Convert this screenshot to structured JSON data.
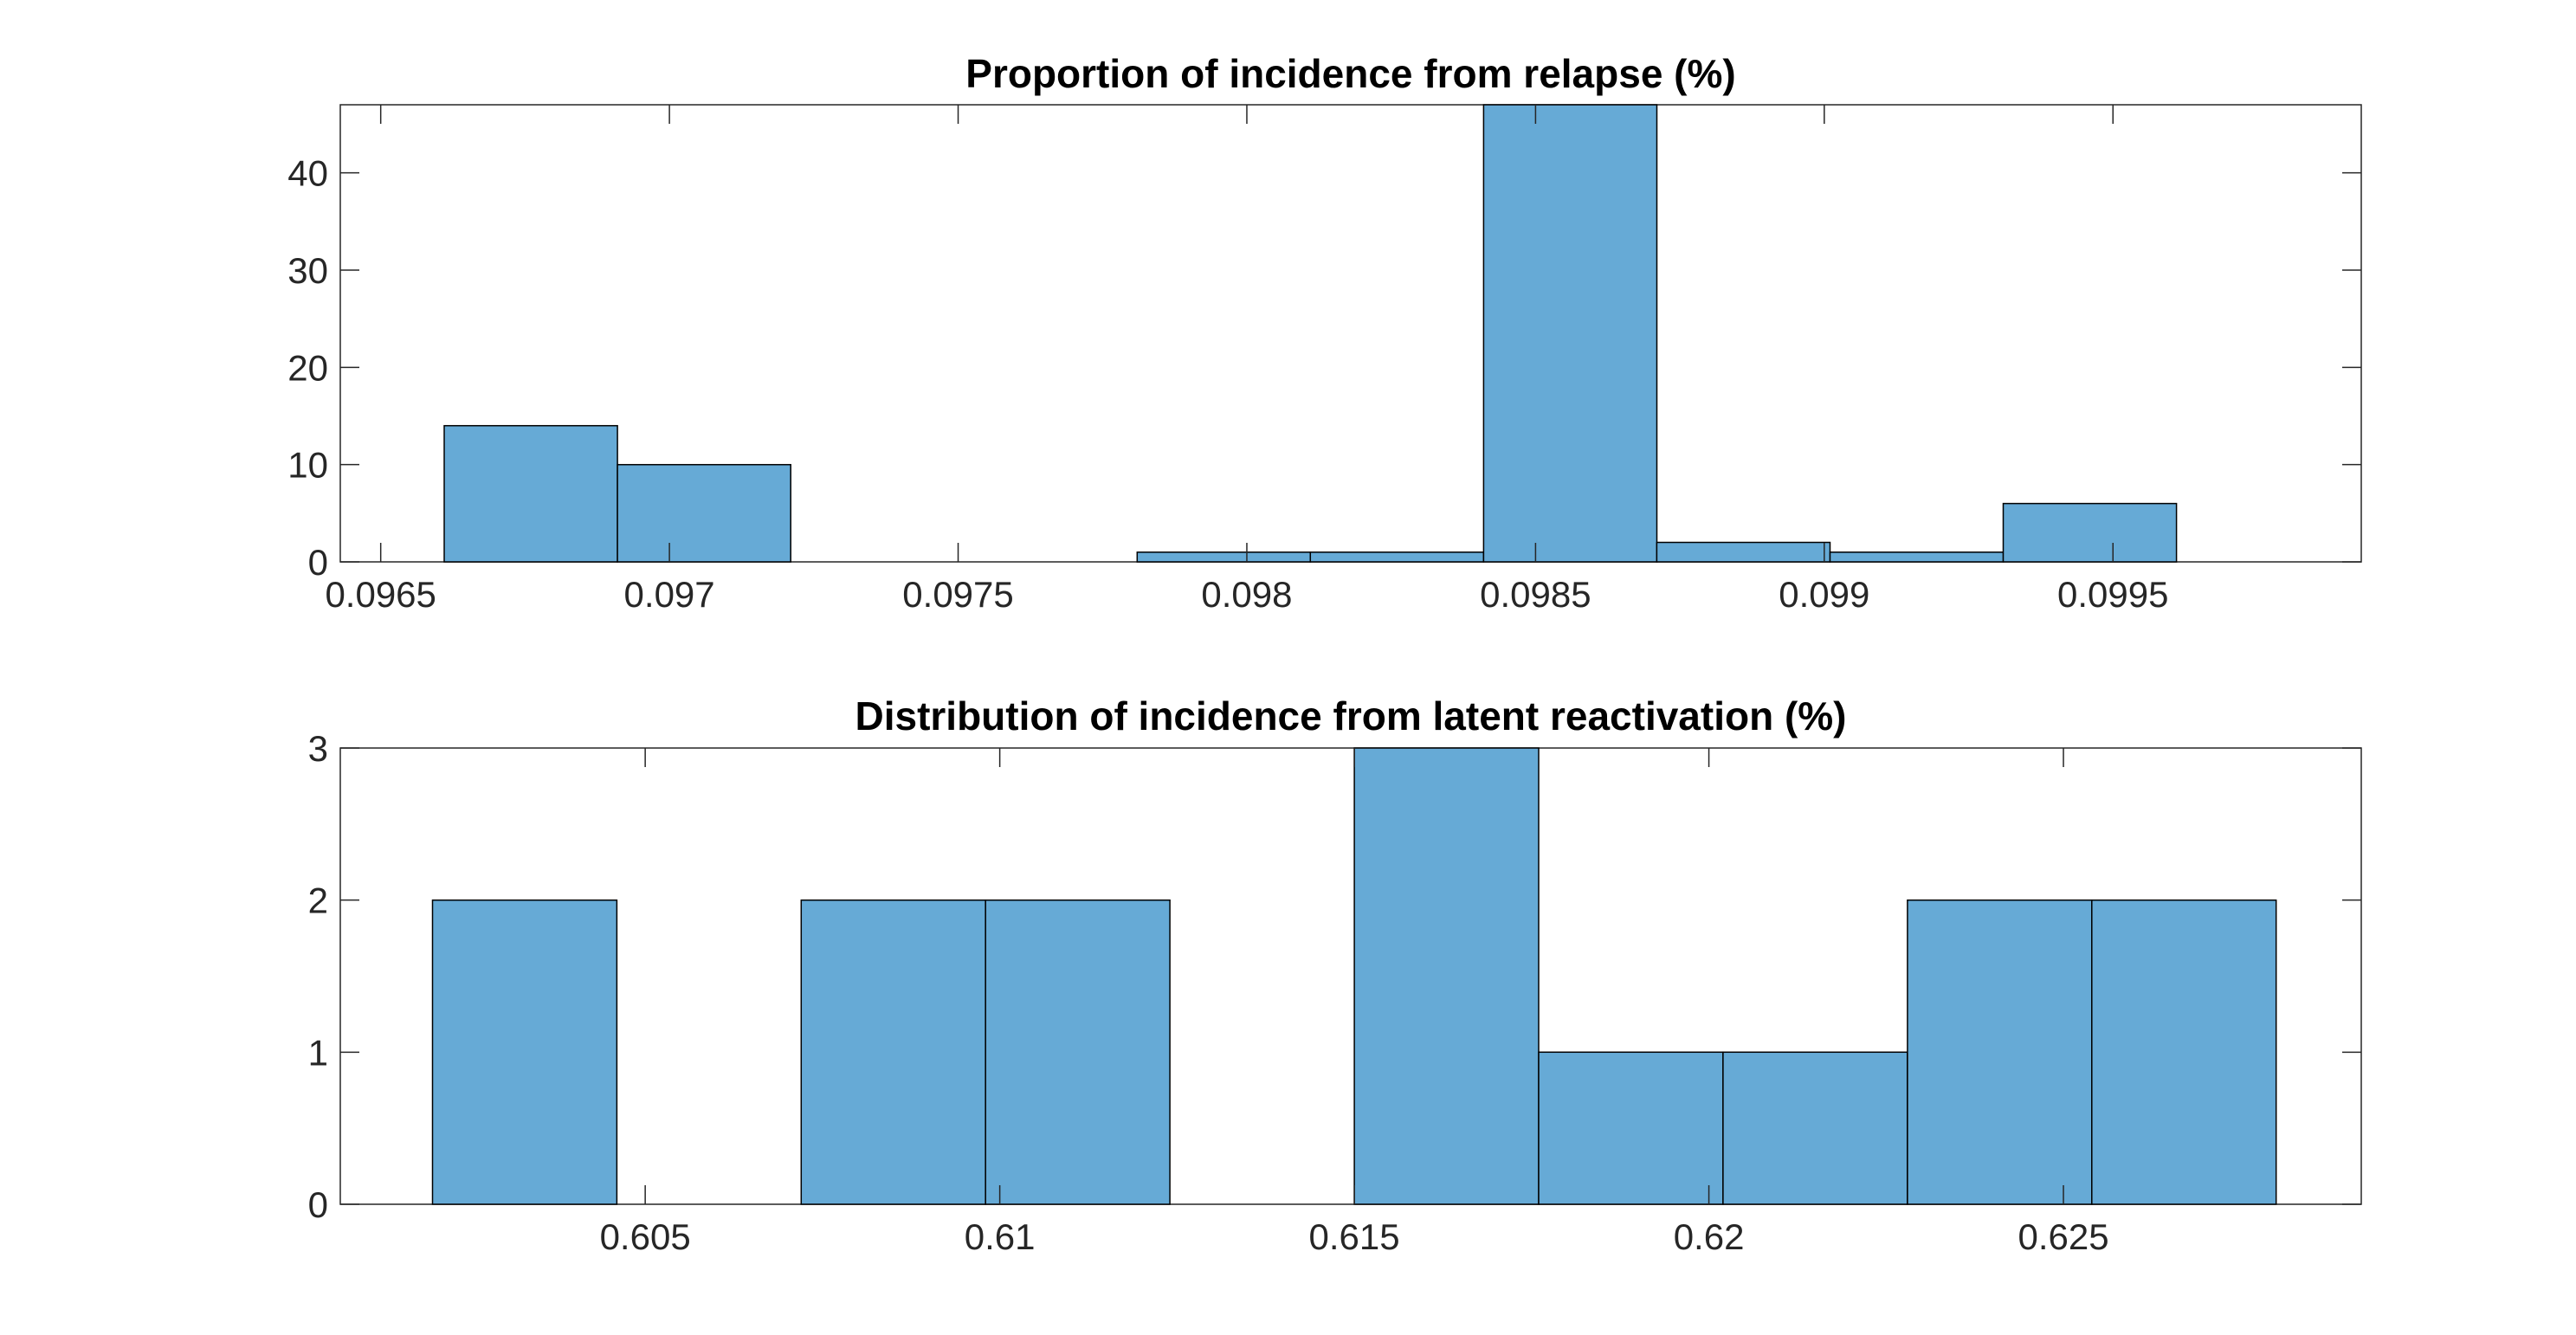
{
  "chart_data": [
    {
      "type": "histogram",
      "title": "Proportion of incidence from relapse (%)",
      "xlabel": "",
      "ylabel": "",
      "xlim": [
        0.09643,
        0.09993
      ],
      "ylim": [
        0,
        47
      ],
      "bin_edges": [
        0.09661,
        0.09691,
        0.09721,
        0.09751,
        0.09781,
        0.09811,
        0.09841,
        0.09871,
        0.09901,
        0.09931,
        0.09961
      ],
      "counts": [
        14,
        10,
        0,
        0,
        1,
        1,
        47,
        2,
        1,
        6
      ],
      "x_ticks": [
        0.0965,
        0.097,
        0.0975,
        0.098,
        0.0985,
        0.099,
        0.0995
      ],
      "x_tick_labels": [
        "0.0965",
        "0.097",
        "0.0975",
        "0.098",
        "0.0985",
        "0.099",
        "0.0995"
      ],
      "y_ticks": [
        0,
        10,
        20,
        30,
        40
      ],
      "y_tick_labels": [
        "0",
        "10",
        "20",
        "30",
        "40"
      ],
      "bar_color": "#66aad6",
      "edge_color": "#000000",
      "grid": false
    },
    {
      "type": "histogram",
      "title": "Distribution of incidence from latent reactivation (%)",
      "xlabel": "",
      "ylabel": "",
      "xlim": [
        0.6007,
        0.6292
      ],
      "ylim": [
        0,
        3
      ],
      "bin_edges": [
        0.602,
        0.6046,
        0.6072,
        0.6098,
        0.6124,
        0.615,
        0.6176,
        0.6202,
        0.6228,
        0.6254,
        0.628
      ],
      "counts": [
        2,
        0,
        2,
        2,
        0,
        3,
        1,
        1,
        2,
        2
      ],
      "x_ticks": [
        0.605,
        0.61,
        0.615,
        0.62,
        0.625
      ],
      "x_tick_labels": [
        "0.605",
        "0.61",
        "0.615",
        "0.62",
        "0.625"
      ],
      "y_ticks": [
        0,
        1,
        2,
        3
      ],
      "y_tick_labels": [
        "0",
        "1",
        "2",
        "3"
      ],
      "bar_color": "#66aad6",
      "edge_color": "#000000",
      "grid": false
    }
  ]
}
